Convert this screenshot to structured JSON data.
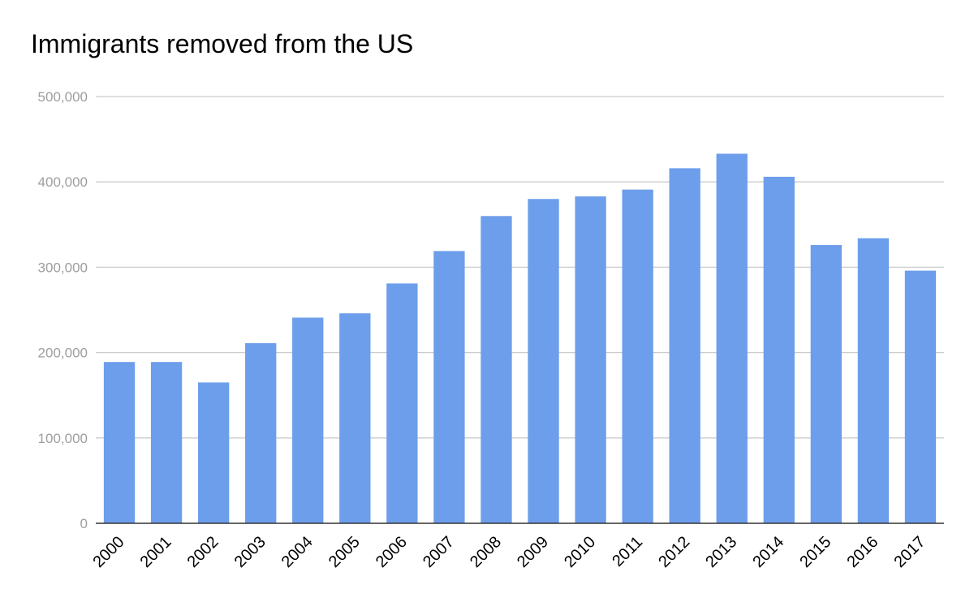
{
  "chart_data": {
    "type": "bar",
    "title": "Immigrants removed from the US",
    "xlabel": "",
    "ylabel": "",
    "categories": [
      "2000",
      "2001",
      "2002",
      "2003",
      "2004",
      "2005",
      "2006",
      "2007",
      "2008",
      "2009",
      "2010",
      "2011",
      "2012",
      "2013",
      "2014",
      "2015",
      "2016",
      "2017"
    ],
    "values": [
      189000,
      189000,
      165000,
      211000,
      241000,
      246000,
      281000,
      319000,
      360000,
      380000,
      383000,
      391000,
      416000,
      433000,
      406000,
      326000,
      334000,
      296000
    ],
    "ylim": [
      0,
      500000
    ],
    "yticks": [
      0,
      100000,
      200000,
      300000,
      400000,
      500000
    ],
    "ytick_labels": [
      "0",
      "100,000",
      "200,000",
      "300,000",
      "400,000",
      "500,000"
    ],
    "grid": true,
    "legend": "none",
    "bar_color": "#6d9eeb",
    "grid_color": "#cccccc",
    "baseline_color": "#333333",
    "tick_label_color": "#9e9e9e"
  }
}
